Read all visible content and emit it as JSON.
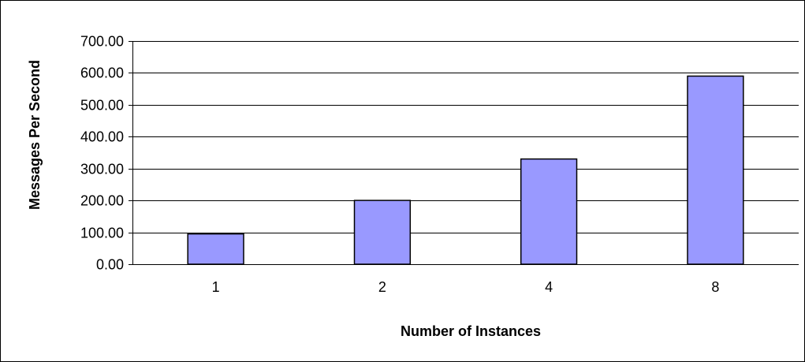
{
  "chart_data": {
    "type": "bar",
    "title": "",
    "xlabel": "Number of Instances",
    "ylabel": "Messages Per Second",
    "categories": [
      "1",
      "2",
      "4",
      "8"
    ],
    "values": [
      95,
      200,
      330,
      590
    ],
    "ylim": [
      0,
      700
    ],
    "yticks": [
      0,
      100,
      200,
      300,
      400,
      500,
      600,
      700
    ],
    "ytick_labels": [
      "0.00",
      "100.00",
      "200.00",
      "300.00",
      "400.00",
      "500.00",
      "600.00",
      "700.00"
    ],
    "grid": true,
    "legend": "none",
    "colors": {
      "bar_fill": "#9999ff",
      "bar_stroke": "#000000",
      "grid": "#000000",
      "frame": "#000000"
    }
  }
}
